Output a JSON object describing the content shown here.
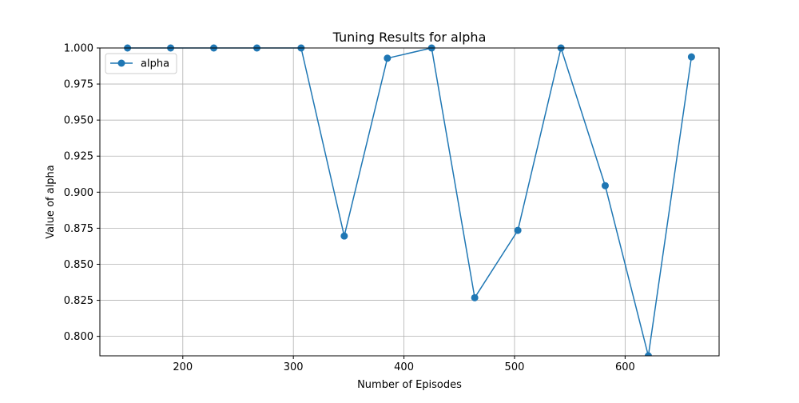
{
  "chart_data": {
    "type": "line",
    "title": "Tuning Results for alpha",
    "xlabel": "Number of Episodes",
    "ylabel": "Value of alpha",
    "xlim": [
      125,
      685
    ],
    "ylim": [
      0.7865,
      1.0
    ],
    "xticks": [
      "200",
      "300",
      "400",
      "500",
      "600"
    ],
    "yticks": [
      "0.800",
      "0.825",
      "0.850",
      "0.875",
      "0.900",
      "0.925",
      "0.950",
      "0.975",
      "1.000"
    ],
    "grid": true,
    "legend_position": "top-left",
    "series": [
      {
        "name": "alpha",
        "color": "#1f77b4",
        "marker": "circle",
        "x": [
          150,
          189,
          228,
          267,
          307,
          346,
          385,
          425,
          464,
          503,
          542,
          582,
          621,
          660
        ],
        "y": [
          1.0,
          1.0,
          1.0,
          1.0,
          1.0,
          0.8696,
          0.9929,
          1.0,
          0.8268,
          0.8735,
          1.0,
          0.9045,
          0.7865,
          0.9938
        ]
      }
    ]
  }
}
